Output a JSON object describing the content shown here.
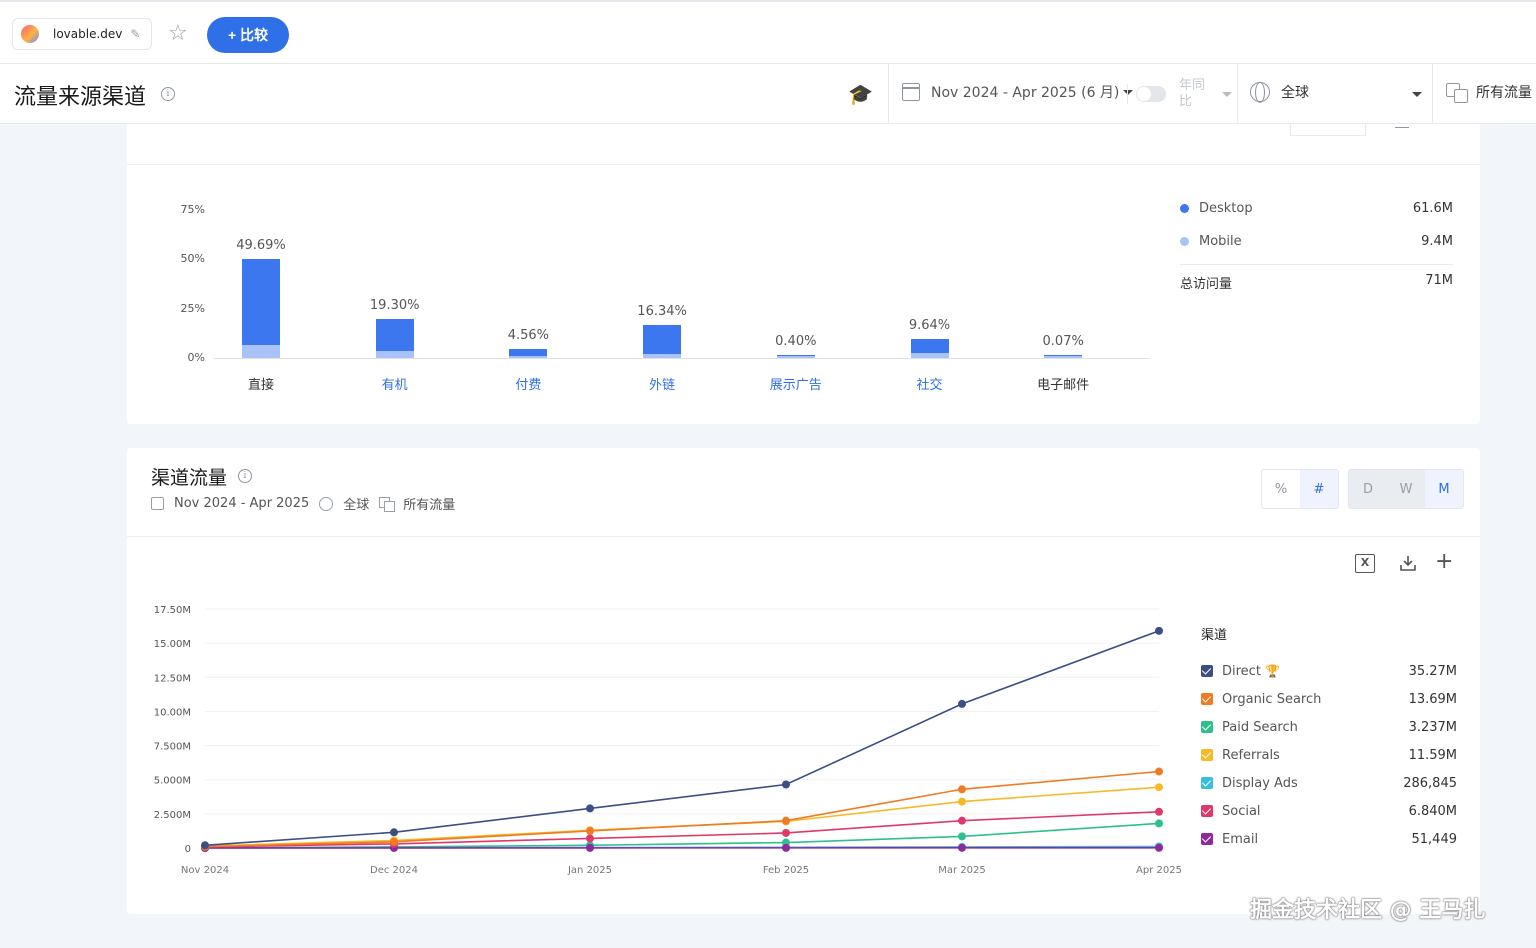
{
  "topbar": {
    "site_name": "lovable.dev",
    "compare_label": "+ 比较"
  },
  "header": {
    "title": "流量来源渠道",
    "date_range": "Nov 2024 - Apr 2025 (6 月)",
    "yoy_label": "年同比",
    "region": "全球",
    "traffic_type": "所有流量"
  },
  "channel_overview": {
    "y_ticks": [
      "75%",
      "50%",
      "25%",
      "0%"
    ],
    "device_legend": [
      {
        "label": "Desktop",
        "value": "61.6M",
        "color": "#3d77f0"
      },
      {
        "label": "Mobile",
        "value": "9.4M",
        "color": "#a9c2f7"
      }
    ],
    "total_label": "总访问量",
    "total_value": "71M"
  },
  "channel_traffic": {
    "title": "渠道流量",
    "date": "Nov 2024 - Apr 2025",
    "region": "全球",
    "traffic_type": "所有流量",
    "metric_toggle": [
      "%",
      "#"
    ],
    "granularity_toggle": [
      "D",
      "W",
      "M"
    ],
    "legend_title": "渠道",
    "y_ticks": [
      "17.50M",
      "15.00M",
      "12.50M",
      "10.00M",
      "7.500M",
      "5.000M",
      "2.500M",
      "0"
    ],
    "x_ticks": [
      "Nov 2024",
      "Dec 2024",
      "Jan 2025",
      "Feb 2025",
      "Mar 2025",
      "Apr 2025"
    ],
    "legend": [
      {
        "label": "Direct",
        "value": "35.27M",
        "color": "#3b4f86",
        "trophy": true
      },
      {
        "label": "Organic Search",
        "value": "13.69M",
        "color": "#f07b22"
      },
      {
        "label": "Paid Search",
        "value": "3.237M",
        "color": "#2dc08d"
      },
      {
        "label": "Referrals",
        "value": "11.59M",
        "color": "#f7b928"
      },
      {
        "label": "Display Ads",
        "value": "286,845",
        "color": "#36bde0"
      },
      {
        "label": "Social",
        "value": "6.840M",
        "color": "#e0386b"
      },
      {
        "label": "Email",
        "value": "51,449",
        "color": "#8e2a9a"
      }
    ]
  },
  "chart_data": [
    {
      "type": "bar",
      "categories": [
        "直接",
        "有机",
        "付费",
        "外链",
        "展示广告",
        "社交",
        "电子邮件"
      ],
      "category_links": [
        false,
        true,
        true,
        true,
        true,
        true,
        false
      ],
      "values": [
        49.69,
        19.3,
        4.56,
        16.34,
        0.4,
        9.64,
        0.07
      ],
      "value_labels": [
        "49.69%",
        "19.30%",
        "4.56%",
        "16.34%",
        "0.40%",
        "9.64%",
        "0.07%"
      ],
      "mobile_share_values": [
        6.5,
        3.5,
        1.2,
        2.0,
        0.2,
        2.5,
        0.03
      ],
      "ylim": [
        0,
        75
      ],
      "series_legend": [
        "Desktop",
        "Mobile"
      ]
    },
    {
      "type": "line",
      "x": [
        "Nov 2024",
        "Dec 2024",
        "Jan 2025",
        "Feb 2025",
        "Mar 2025",
        "Apr 2025"
      ],
      "ylim": [
        0,
        17500000
      ],
      "series": [
        {
          "name": "Direct",
          "values": [
            200000,
            1150000,
            2900000,
            4650000,
            10550000,
            15900000
          ]
        },
        {
          "name": "Organic Search",
          "values": [
            100000,
            450000,
            1250000,
            2000000,
            4300000,
            5600000
          ]
        },
        {
          "name": "Paid Search",
          "values": [
            10000,
            80000,
            200000,
            400000,
            850000,
            1800000
          ]
        },
        {
          "name": "Referrals",
          "values": [
            150000,
            550000,
            1300000,
            1950000,
            3400000,
            4450000
          ]
        },
        {
          "name": "Display Ads",
          "values": [
            2000,
            10000,
            30000,
            50000,
            80000,
            110000
          ]
        },
        {
          "name": "Social",
          "values": [
            80000,
            300000,
            700000,
            1100000,
            2000000,
            2650000
          ]
        },
        {
          "name": "Email",
          "values": [
            1000,
            5000,
            8000,
            10000,
            12000,
            15000
          ]
        }
      ]
    }
  ],
  "watermark": "掘金技术社区 @ 王马扎"
}
